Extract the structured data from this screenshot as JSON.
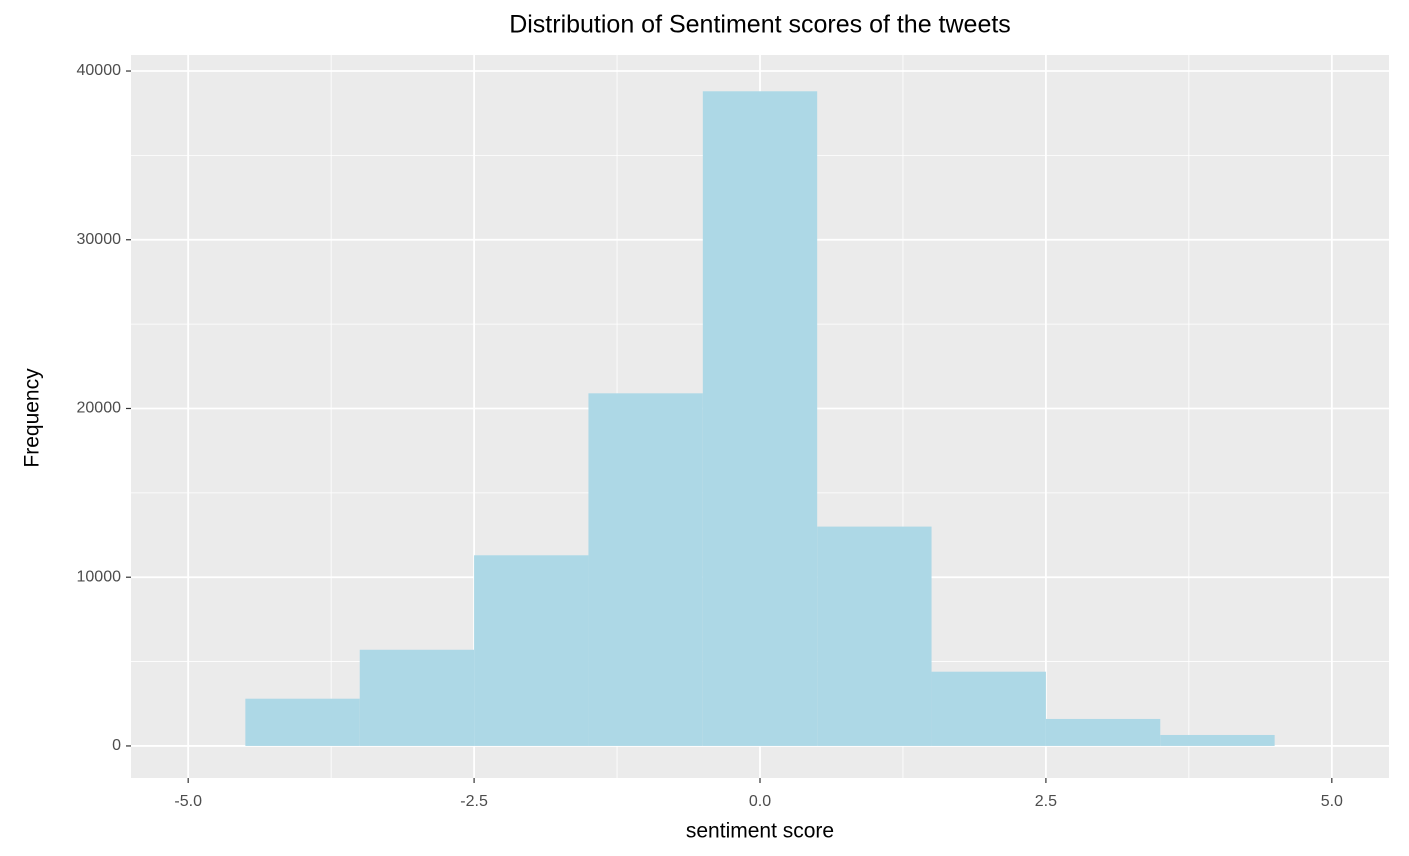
{
  "chart_data": {
    "type": "histogram",
    "title": "Distribution of Sentiment scores of the tweets",
    "x_label": "sentiment score",
    "y_label": "Frequency",
    "bins": [
      -4.5,
      -3.5,
      -2.5,
      -1.5,
      -0.5,
      0.5,
      1.5,
      2.5,
      3.5,
      4.5
    ],
    "values": [
      2800,
      5700,
      11300,
      20900,
      38800,
      13000,
      4400,
      1600,
      650
    ],
    "color": "#add8e6",
    "xlim": [
      -5.5,
      5.5
    ],
    "ylim": [
      -1900,
      40950
    ],
    "xticks": [
      {
        "value": -5,
        "label": "-5.0"
      },
      -2.5,
      {
        "value": 0,
        "label": "0.0"
      },
      2.5,
      {
        "value": 5,
        "label": "5.0"
      }
    ],
    "yticks": [
      0,
      10000,
      20000,
      30000,
      40000
    ],
    "grid": true
  }
}
